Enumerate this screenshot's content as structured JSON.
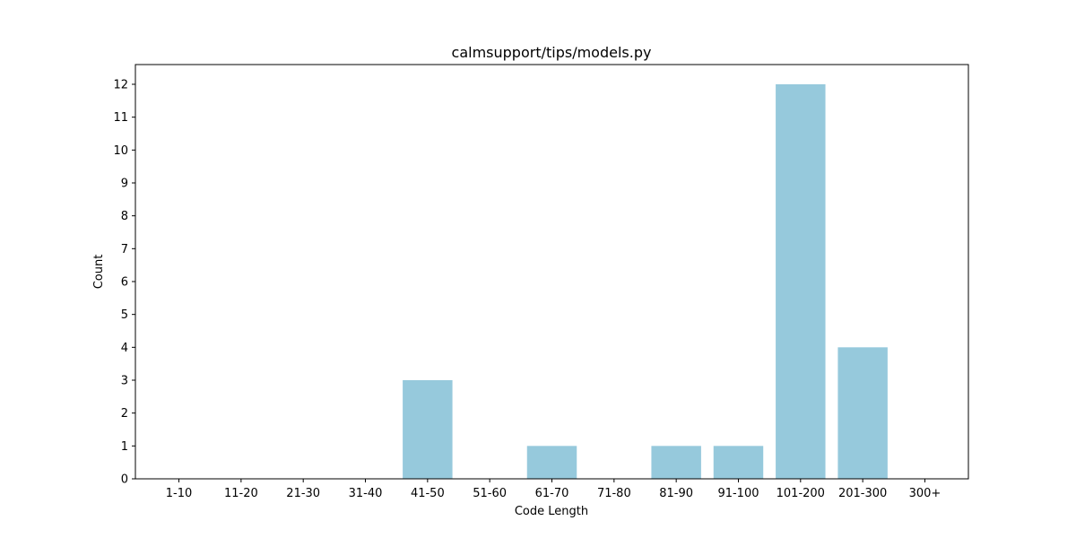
{
  "chart_data": {
    "type": "bar",
    "title": "calmsupport/tips/models.py",
    "xlabel": "Code Length",
    "ylabel": "Count",
    "categories": [
      "1-10",
      "11-20",
      "21-30",
      "31-40",
      "41-50",
      "51-60",
      "61-70",
      "71-80",
      "81-90",
      "91-100",
      "101-200",
      "201-300",
      "300+"
    ],
    "values": [
      0,
      0,
      0,
      0,
      3,
      0,
      1,
      0,
      1,
      1,
      12,
      4,
      0
    ],
    "ylim": [
      0,
      12.6
    ],
    "yticks": [
      0,
      1,
      2,
      3,
      4,
      5,
      6,
      7,
      8,
      9,
      10,
      11,
      12
    ],
    "grid": false,
    "legend": "none",
    "bar_color": "#96c9dc",
    "axis_color": "#000000"
  }
}
